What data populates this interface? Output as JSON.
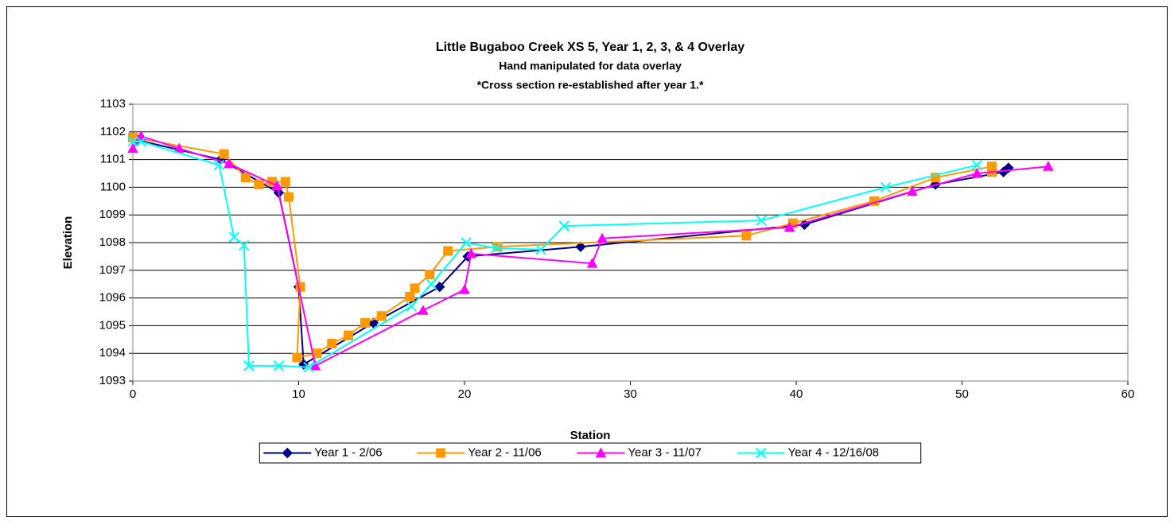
{
  "chart_data": {
    "type": "line",
    "title": "Little Bugaboo Creek XS 5, Year 1, 2, 3, & 4 Overlay",
    "subtitle": "Hand manipulated for data overlay",
    "note": "*Cross section re-established after year 1.*",
    "xlabel": "Station",
    "ylabel": "Elevation",
    "xlim": [
      0,
      60
    ],
    "xticks": [
      0,
      10,
      20,
      30,
      40,
      50,
      60
    ],
    "ylim": [
      1093,
      1103
    ],
    "yticks": [
      1093,
      1094,
      1095,
      1096,
      1097,
      1098,
      1099,
      1100,
      1101,
      1102,
      1103
    ],
    "grid": true,
    "legend": "bottom",
    "series": [
      {
        "name": "Year 1 - 2/06",
        "color": "#000080",
        "marker": "diamond",
        "x": [
          0,
          0.3,
          5.3,
          8.8,
          10,
          10.3,
          14.5,
          18.5,
          20.2,
          27,
          40.5,
          48.4,
          52.5,
          52.8
        ],
        "values": [
          1101.8,
          1101.7,
          1101.0,
          1099.8,
          1096.4,
          1093.6,
          1095.1,
          1096.4,
          1097.5,
          1097.85,
          1098.65,
          1100.1,
          1100.55,
          1100.7
        ]
      },
      {
        "name": "Year 2 - 11/06",
        "color": "#ff9900",
        "marker": "square",
        "x": [
          0,
          5.5,
          6.8,
          7.6,
          8.4,
          9.2,
          9.4,
          10.1,
          9.9,
          11.1,
          12,
          13,
          14,
          15,
          16.7,
          17,
          17.9,
          19,
          22,
          37,
          39.8,
          44.7,
          48.4,
          51.8,
          51.8
        ],
        "values": [
          1101.8,
          1101.2,
          1100.35,
          1100.1,
          1100.2,
          1100.2,
          1099.65,
          1096.4,
          1093.85,
          1094.0,
          1094.35,
          1094.65,
          1095.1,
          1095.35,
          1096.05,
          1096.35,
          1096.85,
          1097.7,
          1097.85,
          1098.25,
          1098.7,
          1099.5,
          1100.35,
          1100.75,
          1100.55
        ]
      },
      {
        "name": "Year 3 - 11/07",
        "color": "#ff00ff",
        "marker": "triangle",
        "x": [
          0,
          0.5,
          2.8,
          5.8,
          8.7,
          11,
          17.5,
          20,
          20.4,
          27.7,
          28.3,
          39.6,
          47,
          50.9,
          55.2
        ],
        "values": [
          1101.4,
          1101.85,
          1101.4,
          1100.85,
          1100.05,
          1093.55,
          1095.55,
          1096.3,
          1097.6,
          1097.25,
          1098.15,
          1098.55,
          1099.85,
          1100.5,
          1100.75
        ]
      },
      {
        "name": "Year 4 - 12/16/08",
        "color": "#00ffff",
        "marker": "x",
        "x": [
          0,
          0.5,
          5.2,
          6.1,
          6.7,
          7,
          8.8,
          10.6,
          16.8,
          18,
          20.1,
          21.9,
          24.6,
          26,
          37.9,
          45.4,
          50.9
        ],
        "values": [
          1101.65,
          1101.65,
          1100.8,
          1098.2,
          1097.9,
          1093.55,
          1093.55,
          1093.5,
          1095.7,
          1096.5,
          1098.0,
          1097.8,
          1097.75,
          1098.6,
          1098.8,
          1100.0,
          1100.8
        ]
      }
    ]
  }
}
